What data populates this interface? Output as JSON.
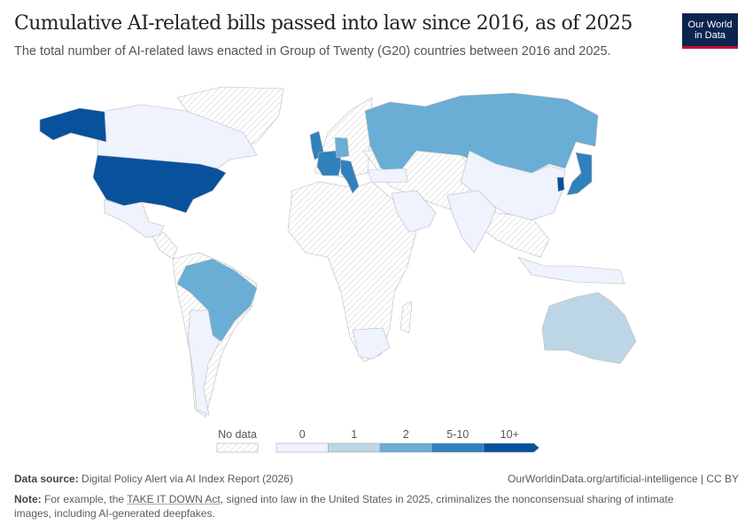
{
  "header": {
    "title": "Cumulative AI-related bills passed into law since 2016, as of 2025",
    "subtitle": "The total number of AI-related laws enacted in Group of Twenty (G20) countries between 2016 and 2025."
  },
  "logo": {
    "line1": "Our World",
    "line2": "in Data",
    "bg": "#0b2450",
    "accent": "#c8102e"
  },
  "legend": {
    "no_data": "No data",
    "bins": [
      {
        "label": "0",
        "color": "#eef3fe"
      },
      {
        "label": "1",
        "color": "#bcd6e6"
      },
      {
        "label": "2",
        "color": "#6aadd5"
      },
      {
        "label": "5-10",
        "color": "#3181bd"
      },
      {
        "label": "10+",
        "color": "#08519c"
      }
    ],
    "no_data_pattern": "diagonal-hatch"
  },
  "map_data": {
    "United States": "10+",
    "South Korea": "10+",
    "United Kingdom": "5-10",
    "France": "5-10",
    "Italy": "5-10",
    "Japan": "5-10",
    "Germany": "2",
    "Russia": "2",
    "Brazil": "2",
    "Australia": "1",
    "Canada": "0",
    "Mexico": "0",
    "Argentina": "0",
    "South Africa": "0",
    "Turkey": "0",
    "Saudi Arabia": "0",
    "China": "0",
    "India": "0",
    "Indonesia": "0"
  },
  "footer": {
    "source_label": "Data source:",
    "source": "Digital Policy Alert via AI Index Report (2026)",
    "url": "OurWorldinData.org/artificial-intelligence | CC BY",
    "note_label": "Note:",
    "note_pre": "For example, the",
    "note_link": "TAKE IT DOWN Act",
    "note_post": ", signed into law in the United States in 2025, criminalizes the nonconsensual sharing of intimate",
    "note_line2": "images, including AI-generated deepfakes."
  }
}
